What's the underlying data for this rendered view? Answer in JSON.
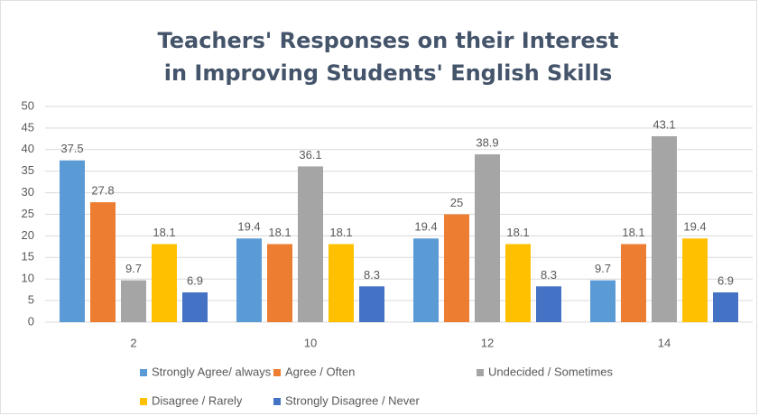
{
  "chart_data": {
    "type": "bar",
    "title": [
      "Teachers' Responses on their Interest",
      "in Improving Students' English Skills"
    ],
    "categories": [
      "2",
      "10",
      "12",
      "14"
    ],
    "series": [
      {
        "name": "Strongly Agree/ always",
        "color": "#5b9bd5",
        "values": [
          37.5,
          19.4,
          19.4,
          9.7
        ]
      },
      {
        "name": "Agree / Often",
        "color": "#ed7d31",
        "values": [
          27.8,
          18.1,
          25,
          18.1
        ]
      },
      {
        "name": "Undecided / Sometimes",
        "color": "#a5a5a5",
        "values": [
          9.7,
          36.1,
          38.9,
          43.1
        ]
      },
      {
        "name": "Disagree / Rarely",
        "color": "#ffc000",
        "values": [
          18.1,
          18.1,
          18.1,
          19.4
        ]
      },
      {
        "name": "Strongly Disagree / Never",
        "color": "#4472c4",
        "values": [
          6.9,
          8.3,
          8.3,
          6.9
        ]
      }
    ],
    "ylim": [
      0,
      50
    ],
    "yticks": [
      0,
      5,
      10,
      15,
      20,
      25,
      30,
      35,
      40,
      45,
      50
    ],
    "grid": true,
    "legend": "bottom"
  }
}
